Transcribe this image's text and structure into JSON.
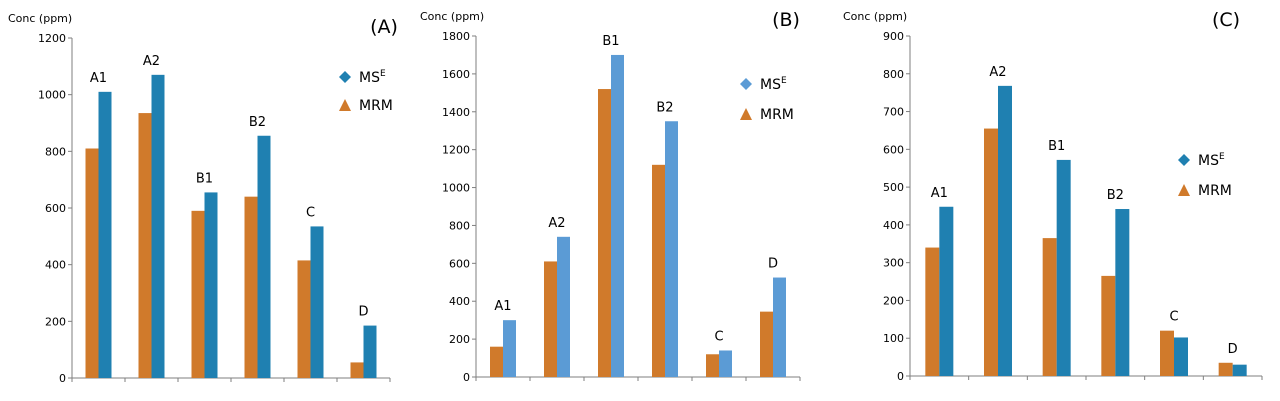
{
  "chart_data": [
    {
      "type": "bar",
      "panel_label": "(A)",
      "ylabel": "Conc (ppm)",
      "ylim": [
        0,
        1200
      ],
      "yticks": [
        0,
        200,
        400,
        600,
        800,
        1000,
        1200
      ],
      "categories": [
        "A1",
        "A2",
        "B1",
        "B2",
        "C",
        "D"
      ],
      "series": [
        {
          "name": "MRM",
          "color": "#d07a2b",
          "values": [
            810,
            935,
            590,
            640,
            415,
            55
          ]
        },
        {
          "name": "MSᴱ",
          "color": "#1f80b1",
          "values": [
            1010,
            1070,
            655,
            855,
            535,
            185
          ]
        }
      ],
      "legend": {
        "position": "top-right",
        "entries": [
          {
            "base": "MS",
            "sup": "E",
            "marker": "diamond",
            "color": "#1f80b1"
          },
          {
            "base": "MRM",
            "sup": "",
            "marker": "triangle",
            "color": "#d07a2b"
          }
        ]
      }
    },
    {
      "type": "bar",
      "panel_label": "(B)",
      "ylabel": "Conc (ppm)",
      "ylim": [
        0,
        1800
      ],
      "yticks": [
        0,
        200,
        400,
        600,
        800,
        1000,
        1200,
        1400,
        1600,
        1800
      ],
      "categories": [
        "A1",
        "A2",
        "B1",
        "B2",
        "C",
        "D"
      ],
      "series": [
        {
          "name": "MRM",
          "color": "#d07a2b",
          "values": [
            160,
            610,
            1520,
            1120,
            120,
            345
          ]
        },
        {
          "name": "MSᴱ",
          "color": "#5b9bd5",
          "values": [
            300,
            740,
            1700,
            1350,
            140,
            525
          ]
        }
      ],
      "legend": {
        "position": "top-right",
        "entries": [
          {
            "base": "MS",
            "sup": "E",
            "marker": "diamond",
            "color": "#5b9bd5"
          },
          {
            "base": "MRM",
            "sup": "",
            "marker": "triangle",
            "color": "#d07a2b"
          }
        ]
      }
    },
    {
      "type": "bar",
      "panel_label": "(C)",
      "ylabel": "Conc (ppm)",
      "ylim": [
        0,
        900
      ],
      "yticks": [
        0,
        100,
        200,
        300,
        400,
        500,
        600,
        700,
        800,
        900
      ],
      "categories": [
        "A1",
        "A2",
        "B1",
        "B2",
        "C",
        "D"
      ],
      "series": [
        {
          "name": "MRM",
          "color": "#d07a2b",
          "values": [
            340,
            655,
            365,
            265,
            120,
            35
          ]
        },
        {
          "name": "MSᴱ",
          "color": "#1f80b1",
          "values": [
            448,
            768,
            572,
            442,
            102,
            30
          ]
        }
      ],
      "legend": {
        "position": "right",
        "entries": [
          {
            "base": "MS",
            "sup": "E",
            "marker": "diamond",
            "color": "#1f80b1"
          },
          {
            "base": "MRM",
            "sup": "",
            "marker": "triangle",
            "color": "#d07a2b"
          }
        ]
      }
    }
  ]
}
